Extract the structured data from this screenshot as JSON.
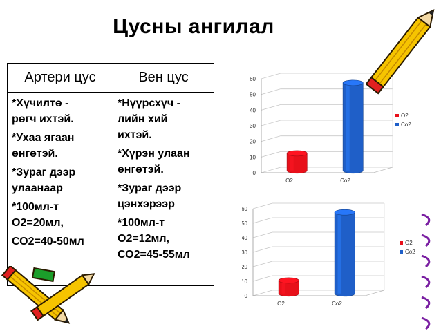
{
  "title": "Цусны ангилал",
  "table": {
    "headers": [
      "Артери цус",
      "Вен цус"
    ],
    "col1_lines": [
      "*Хүчилтө -",
      "рөгч ихтэй.",
      "*Ухаа ягаан",
      "өнгөтэй.",
      "*Зураг дээр",
      "улаанаар",
      "*100мл-т",
      "О2=20мл,",
      "СО2=40-50мл"
    ],
    "col2_lines": [
      "*Нүүрсхүч -",
      "лийн хий",
      "ихтэй.",
      "*Хүрэн улаан",
      "өнгөтэй.",
      "*Зураг дээр",
      "цэнхэрээр",
      "*100мл-т",
      "О2=12мл,",
      "СО2=45-55мл"
    ]
  },
  "chart_data": [
    {
      "type": "bar",
      "categories": [
        "O2",
        "Co2"
      ],
      "values": [
        11,
        56
      ],
      "yticks": [
        "0",
        "10",
        "20",
        "30",
        "40",
        "50",
        "60"
      ],
      "ylim": [
        0,
        60
      ],
      "legend": [
        "O2",
        "Co2"
      ],
      "legend_position": "right",
      "colors": [
        "#e8101a",
        "#1f5fc8"
      ]
    },
    {
      "type": "bar",
      "categories": [
        "O2",
        "Co2"
      ],
      "values": [
        9,
        56
      ],
      "yticks": [
        "0",
        "10",
        "20",
        "30",
        "40",
        "50",
        "60"
      ],
      "ylim": [
        0,
        60
      ],
      "legend": [
        "O2",
        "Co2"
      ],
      "legend_position": "right",
      "colors": [
        "#e8101a",
        "#1f5fc8"
      ]
    }
  ],
  "icons": [
    "pencil-icon-top-right",
    "pencil-icon-bottom-left",
    "pencil-icon-bottom-left-2",
    "spiral-binding-icon"
  ]
}
